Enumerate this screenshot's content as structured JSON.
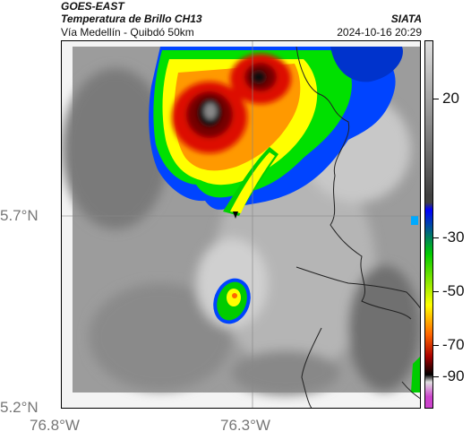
{
  "header": {
    "satellite": "GOES-EAST",
    "product": "Temperatura de Brillo CH13",
    "route": "Vía Medellín - Quibdó 50km",
    "agency": "SIATA",
    "timestamp": "2024-10-16 20:29"
  },
  "map": {
    "y_ticks": [
      "5.7°N",
      "5.2°N"
    ],
    "x_ticks": [
      "76.8°W",
      "76.3°W"
    ]
  },
  "colorbar": {
    "labels": [
      "20",
      "-30",
      "-50",
      "-70",
      "-90"
    ],
    "colors": [
      "#e0e0e0",
      "#404040",
      "#0000ff",
      "#00cc00",
      "#ffff00",
      "#ff6600",
      "#aa0000",
      "#000000",
      "#cc44cc"
    ]
  }
}
